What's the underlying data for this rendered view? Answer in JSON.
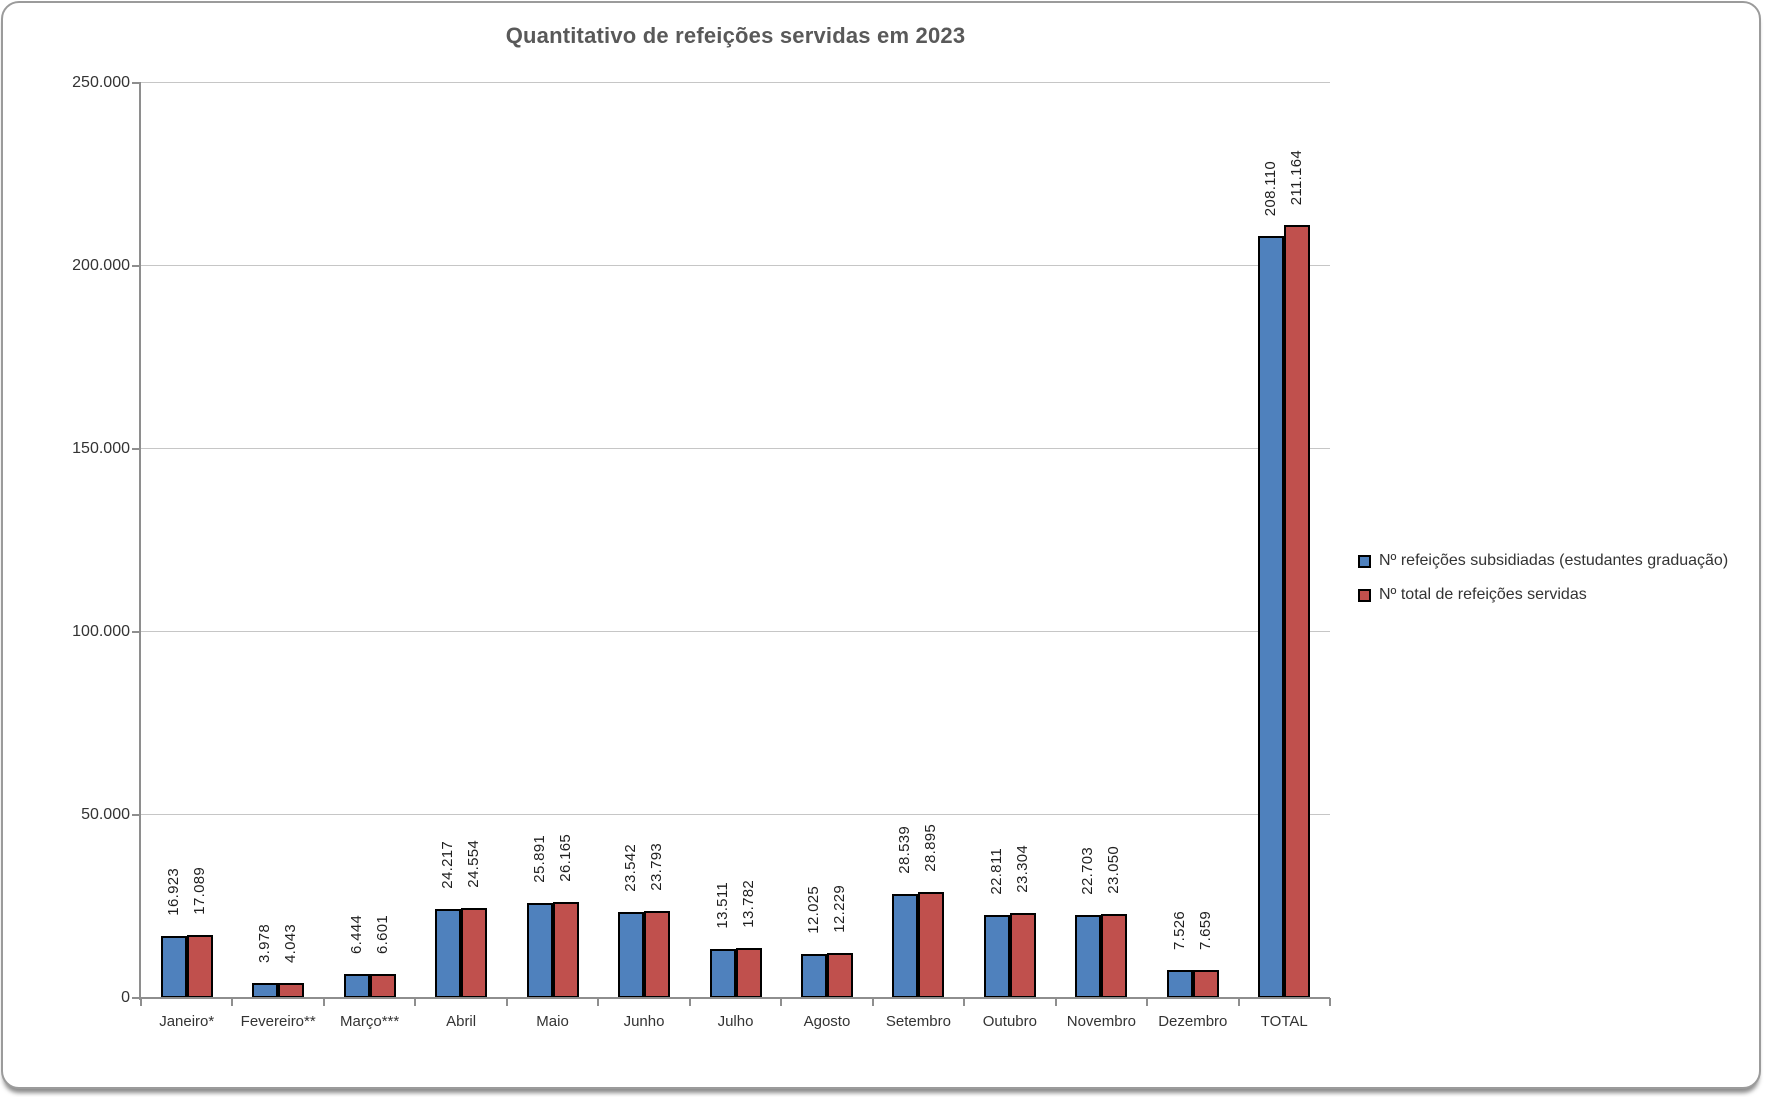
{
  "frame": {
    "border_color": "#9b9b9b",
    "background": "#ffffff"
  },
  "chart_data": {
    "type": "bar",
    "title": "Quantitativo de refeições servidas em 2023",
    "title_color": "#595959",
    "grid": true,
    "legend_position": "right",
    "bar_border_color": "#000000",
    "categories": [
      "Janeiro*",
      "Fevereiro**",
      "Março***",
      "Abril",
      "Maio",
      "Junho",
      "Julho",
      "Agosto",
      "Setembro",
      "Outubro",
      "Novembro",
      "Dezembro",
      "TOTAL"
    ],
    "series": [
      {
        "name": "Nº refeições subsidiadas (estudantes graduação)",
        "color": "#4F81BD",
        "values": [
          16923,
          3978,
          6444,
          24217,
          25891,
          23542,
          13511,
          12025,
          28539,
          22811,
          22703,
          7526,
          208110
        ],
        "data_labels": [
          "16.923",
          "3.978",
          "6.444",
          "24.217",
          "25.891",
          "23.542",
          "13.511",
          "12.025",
          "28.539",
          "22.811",
          "22.703",
          "7.526",
          "208.110"
        ]
      },
      {
        "name": "Nº total de refeições servidas",
        "color": "#C0504D",
        "values": [
          17089,
          4043,
          6601,
          24554,
          26165,
          23793,
          13782,
          12229,
          28895,
          23304,
          23050,
          7659,
          211164
        ],
        "data_labels": [
          "17.089",
          "4.043",
          "6.601",
          "24.554",
          "26.165",
          "23.793",
          "13.782",
          "12.229",
          "28.895",
          "23.304",
          "23.050",
          "7.659",
          "211.164"
        ]
      }
    ],
    "y_axis": {
      "min": 0,
      "max": 250000,
      "step": 50000,
      "tick_labels": [
        "0",
        "50.000",
        "100.000",
        "150.000",
        "200.000",
        "250.000"
      ]
    }
  }
}
